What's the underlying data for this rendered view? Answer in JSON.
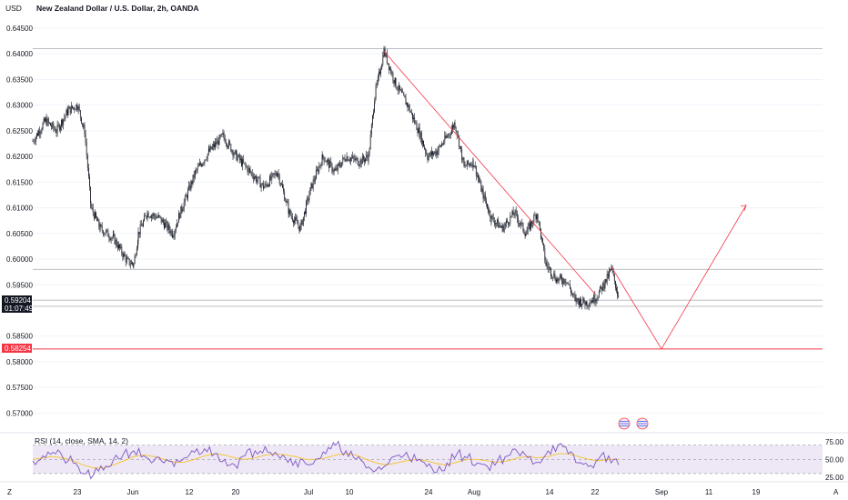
{
  "header": {
    "currency": "USD",
    "symbol_title": "New Zealand Dollar / U.S. Dollar, 2h, OANDA"
  },
  "price_tags": {
    "last_price": "0.59204",
    "countdown": "01:07:49",
    "target_level": "0.58254"
  },
  "rsi": {
    "title": "RSI (14, close, SMA, 14, 2)"
  },
  "time_axis": {
    "corner_left": "Z",
    "corner_right": "A"
  },
  "colors": {
    "candle": "#131722",
    "projection_line": "#f23645",
    "target_tag": "#f23645",
    "last_tag": "#131722",
    "rsi_line": "#7e57c2",
    "rsi_ma_line": "#f7c325",
    "rsi_band_fill": "#ede7f6",
    "gridline": "#f0f3fa"
  },
  "chart_data": [
    {
      "type": "line",
      "title": "New Zealand Dollar / U.S. Dollar, 2h, OANDA",
      "ylim": [
        0.565,
        0.6465
      ],
      "y_ticks": [
        "0.64500",
        "0.64000",
        "0.63500",
        "0.63000",
        "0.62500",
        "0.62000",
        "0.61500",
        "0.61000",
        "0.60500",
        "0.60000",
        "0.59500",
        "0.58500",
        "0.58000",
        "0.57500",
        "0.57000"
      ],
      "x_ticks": [
        "23",
        "Jun",
        "12",
        "20",
        "Jul",
        "10",
        "24",
        "Aug",
        "14",
        "22",
        "Sep",
        "11",
        "19"
      ],
      "series": [
        {
          "values_at_ticks": {
            "23": 0.629,
            "Jun": 0.601,
            "12": 0.615,
            "20": 0.622,
            "Jul": 0.615,
            "10": 0.62,
            "24": 0.624,
            "Aug": 0.617,
            "14": 0.598,
            "22": 0.595
          }
        }
      ],
      "horizontal_levels": [
        0.641,
        0.598,
        0.592,
        0.5908,
        0.5825
      ],
      "annotations": {
        "downtrend_line": [
          [
            "Jul 14",
            0.6405
          ],
          [
            "Aug 22",
            0.593
          ]
        ],
        "projected_path": [
          [
            "Aug 24",
            0.5985
          ],
          [
            "Aug 31",
            0.5825
          ],
          [
            "Sep 15",
            0.6105
          ]
        ]
      }
    },
    {
      "type": "line",
      "title": "RSI (14, close, SMA, 14, 2)",
      "ylim": [
        15,
        85
      ],
      "y_ticks": [
        "75.00",
        "50.00",
        "25.00"
      ],
      "bands": [
        70,
        30
      ],
      "series": [
        {
          "name": "RSI",
          "values": [
            48,
            55,
            60,
            52,
            45,
            30,
            28,
            35,
            50,
            58,
            62,
            55,
            48,
            45,
            40,
            52,
            60,
            65,
            58,
            50,
            42,
            55,
            62,
            68,
            60,
            52,
            48,
            44,
            50,
            58,
            70,
            62,
            50,
            38,
            35,
            42,
            55,
            60,
            48,
            40,
            32,
            45,
            58,
            52,
            45,
            40,
            48,
            55,
            60,
            52,
            46,
            62,
            70,
            58,
            45,
            40,
            50,
            55,
            42
          ]
        },
        {
          "name": "RSI-based MA",
          "values": [
            50,
            52,
            54,
            52,
            48,
            42,
            38,
            38,
            42,
            48,
            54,
            56,
            54,
            50,
            46,
            46,
            50,
            55,
            58,
            56,
            52,
            50,
            52,
            56,
            58,
            56,
            54,
            50,
            50,
            52,
            56,
            58,
            56,
            50,
            45,
            42,
            45,
            48,
            50,
            48,
            44,
            42,
            46,
            50,
            50,
            48,
            46,
            48,
            52,
            54,
            52,
            54,
            58,
            58,
            54,
            50,
            48,
            50,
            50
          ]
        }
      ]
    }
  ]
}
